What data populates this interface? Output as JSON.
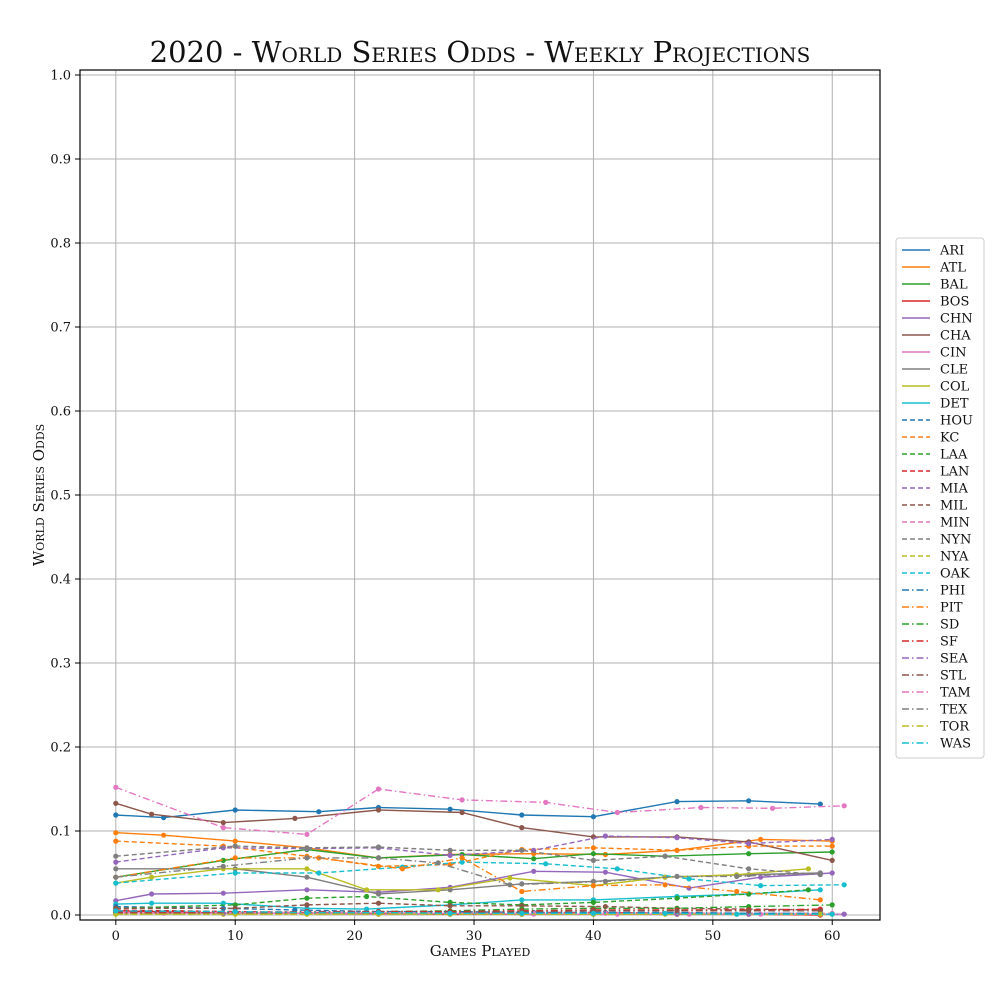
{
  "chart_data": {
    "type": "line",
    "title": "2020 - World Series Odds - Weekly Projections",
    "xlabel": "Games Played",
    "ylabel": "World Series Odds",
    "xlim": [
      -3,
      64
    ],
    "ylim": [
      0,
      1
    ],
    "xticks": [
      "0",
      "10",
      "20",
      "30",
      "40",
      "50",
      "60"
    ],
    "yticks": [
      "0.0",
      "0.1",
      "0.2",
      "0.3",
      "0.4",
      "0.5",
      "0.6",
      "0.7",
      "0.8",
      "0.9",
      "1.0"
    ],
    "grid": true,
    "legend_position": "right",
    "series": [
      {
        "name": "ARI",
        "color": "#1f77b4",
        "dash": "solid",
        "x": [
          0,
          4,
          10,
          17,
          22,
          28,
          34,
          40,
          47,
          53,
          59
        ],
        "y": [
          0.119,
          0.116,
          0.125,
          0.123,
          0.128,
          0.126,
          0.119,
          0.117,
          0.135,
          0.136,
          0.132
        ]
      },
      {
        "name": "ATL",
        "color": "#ff7f0e",
        "dash": "solid",
        "x": [
          0,
          4,
          10,
          16,
          22,
          28,
          35,
          41,
          47,
          54,
          60
        ],
        "y": [
          0.098,
          0.095,
          0.088,
          0.08,
          0.068,
          0.072,
          0.073,
          0.072,
          0.077,
          0.09,
          0.088
        ]
      },
      {
        "name": "BAL",
        "color": "#2ca02c",
        "dash": "solid",
        "x": [
          0,
          9,
          16,
          22,
          29,
          35,
          40,
          46,
          53,
          60
        ],
        "y": [
          0.045,
          0.065,
          0.078,
          0.068,
          0.072,
          0.067,
          0.073,
          0.07,
          0.073,
          0.075
        ]
      },
      {
        "name": "BOS",
        "color": "#d62728",
        "dash": "solid",
        "x": [
          0,
          10,
          16,
          22,
          28,
          34,
          40,
          47,
          53,
          59
        ],
        "y": [
          0.005,
          0.002,
          0.002,
          0.002,
          0.001,
          0.001,
          0.001,
          0.001,
          0.001,
          0.0
        ]
      },
      {
        "name": "CHN",
        "color": "#9467bd",
        "dash": "solid",
        "x": [
          0,
          3,
          9,
          16,
          22,
          28,
          35,
          41,
          48,
          54,
          60
        ],
        "y": [
          0.017,
          0.025,
          0.026,
          0.03,
          0.027,
          0.033,
          0.052,
          0.051,
          0.032,
          0.045,
          0.05
        ]
      },
      {
        "name": "CHA",
        "color": "#8c564b",
        "dash": "solid",
        "x": [
          0,
          3,
          9,
          15,
          22,
          29,
          34,
          40,
          47,
          53,
          60
        ],
        "y": [
          0.133,
          0.12,
          0.11,
          0.115,
          0.125,
          0.122,
          0.104,
          0.093,
          0.093,
          0.087,
          0.065
        ]
      },
      {
        "name": "CIN",
        "color": "#e377c2",
        "dash": "solid",
        "x": [
          0,
          4,
          10,
          16,
          22,
          28,
          35,
          42,
          48,
          54,
          61
        ],
        "y": [
          0.003,
          0.002,
          0.002,
          0.002,
          0.001,
          0.002,
          0.001,
          0.001,
          0.001,
          0.001,
          0.001
        ]
      },
      {
        "name": "CLE",
        "color": "#7f7f7f",
        "dash": "solid",
        "x": [
          0,
          10,
          16,
          22,
          28,
          34,
          40,
          46,
          53,
          59
        ],
        "y": [
          0.055,
          0.055,
          0.045,
          0.025,
          0.03,
          0.037,
          0.04,
          0.045,
          0.048,
          0.05
        ]
      },
      {
        "name": "COL",
        "color": "#bcbd22",
        "dash": "solid",
        "x": [
          0,
          3,
          9,
          16,
          21,
          27,
          33,
          40,
          46,
          52,
          58
        ],
        "y": [
          0.038,
          0.045,
          0.055,
          0.055,
          0.03,
          0.03,
          0.044,
          0.035,
          0.045,
          0.048,
          0.055
        ]
      },
      {
        "name": "DET",
        "color": "#17becf",
        "dash": "solid",
        "x": [
          0,
          3,
          9,
          16,
          21,
          28,
          34,
          40,
          47,
          53,
          59
        ],
        "y": [
          0.013,
          0.014,
          0.014,
          0.008,
          0.007,
          0.012,
          0.018,
          0.018,
          0.022,
          0.025,
          0.03
        ]
      },
      {
        "name": "HOU",
        "color": "#1f77b4",
        "dash": "dash",
        "x": [
          0,
          9,
          15,
          22,
          28,
          35,
          41,
          47,
          53,
          59
        ],
        "y": [
          0.01,
          0.008,
          0.006,
          0.004,
          0.004,
          0.003,
          0.003,
          0.002,
          0.002,
          0.002
        ]
      },
      {
        "name": "KC",
        "color": "#ff7f0e",
        "dash": "dash",
        "x": [
          0,
          9,
          16,
          22,
          28,
          34,
          40,
          47,
          53,
          60
        ],
        "y": [
          0.088,
          0.082,
          0.07,
          0.058,
          0.06,
          0.078,
          0.08,
          0.077,
          0.082,
          0.082
        ]
      },
      {
        "name": "LAA",
        "color": "#2ca02c",
        "dash": "dash",
        "x": [
          0,
          10,
          16,
          21,
          28,
          34,
          40,
          47,
          53,
          58
        ],
        "y": [
          0.008,
          0.012,
          0.02,
          0.022,
          0.015,
          0.012,
          0.015,
          0.02,
          0.025,
          0.03
        ]
      },
      {
        "name": "LAN",
        "color": "#d62728",
        "dash": "dash",
        "x": [
          0,
          10,
          16,
          22,
          28,
          34,
          40,
          47,
          53,
          59
        ],
        "y": [
          0.006,
          0.004,
          0.003,
          0.002,
          0.002,
          0.002,
          0.003,
          0.002,
          0.002,
          0.001
        ]
      },
      {
        "name": "MIA",
        "color": "#9467bd",
        "dash": "dash",
        "x": [
          0,
          9,
          16,
          22,
          28,
          35,
          41,
          47,
          53,
          60
        ],
        "y": [
          0.063,
          0.08,
          0.079,
          0.08,
          0.071,
          0.077,
          0.094,
          0.092,
          0.085,
          0.09
        ]
      },
      {
        "name": "MIL",
        "color": "#8c564b",
        "dash": "dash",
        "x": [
          0,
          10,
          16,
          22,
          28,
          34,
          41,
          47,
          53,
          59
        ],
        "y": [
          0.008,
          0.008,
          0.012,
          0.014,
          0.011,
          0.011,
          0.01,
          0.008,
          0.007,
          0.006
        ]
      },
      {
        "name": "MIN",
        "color": "#e377c2",
        "dash": "dash",
        "x": [
          0,
          10,
          16,
          22,
          28,
          35,
          41,
          47,
          53,
          60
        ],
        "y": [
          0.002,
          0.003,
          0.002,
          0.003,
          0.002,
          0.002,
          0.002,
          0.002,
          0.002,
          0.002
        ]
      },
      {
        "name": "NYN",
        "color": "#7f7f7f",
        "dash": "dash",
        "x": [
          0,
          10,
          16,
          22,
          28,
          34,
          40,
          46,
          53,
          59
        ],
        "y": [
          0.07,
          0.082,
          0.08,
          0.081,
          0.077,
          0.077,
          0.065,
          0.07,
          0.055,
          0.048
        ]
      },
      {
        "name": "NYA",
        "color": "#bcbd22",
        "dash": "dash",
        "x": [
          0,
          9,
          16,
          22,
          28,
          34,
          40,
          47,
          53,
          60
        ],
        "y": [
          0.001,
          0.001,
          0.001,
          0.001,
          0.001,
          0.001,
          0.001,
          0.001,
          0.001,
          0.001
        ]
      },
      {
        "name": "OAK",
        "color": "#17becf",
        "dash": "dash",
        "x": [
          0,
          10,
          17,
          24,
          29,
          36,
          42,
          48,
          54,
          61
        ],
        "y": [
          0.038,
          0.05,
          0.05,
          0.057,
          0.063,
          0.061,
          0.055,
          0.043,
          0.035,
          0.036
        ]
      },
      {
        "name": "PHI",
        "color": "#1f77b4",
        "dash": "dashdot",
        "x": [
          0,
          10,
          16,
          22,
          28,
          34,
          40,
          47,
          53,
          59
        ],
        "y": [
          0.004,
          0.003,
          0.003,
          0.003,
          0.003,
          0.003,
          0.003,
          0.003,
          0.002,
          0.002
        ]
      },
      {
        "name": "PIT",
        "color": "#ff7f0e",
        "dash": "dashdot",
        "x": [
          0,
          10,
          17,
          24,
          29,
          34,
          40,
          46,
          52,
          59
        ],
        "y": [
          0.045,
          0.068,
          0.068,
          0.055,
          0.068,
          0.028,
          0.035,
          0.036,
          0.028,
          0.018
        ]
      },
      {
        "name": "SD",
        "color": "#2ca02c",
        "dash": "dashdot",
        "x": [
          0,
          10,
          16,
          22,
          28,
          34,
          40,
          47,
          53,
          60
        ],
        "y": [
          0.002,
          0.003,
          0.003,
          0.004,
          0.005,
          0.007,
          0.008,
          0.008,
          0.01,
          0.012
        ]
      },
      {
        "name": "SF",
        "color": "#d62728",
        "dash": "dashdot",
        "x": [
          0,
          10,
          16,
          22,
          28,
          34,
          40,
          47,
          53,
          59
        ],
        "y": [
          0.003,
          0.003,
          0.004,
          0.004,
          0.004,
          0.005,
          0.006,
          0.006,
          0.006,
          0.007
        ]
      },
      {
        "name": "SEA",
        "color": "#9467bd",
        "dash": "dashdot",
        "x": [
          0,
          9,
          16,
          22,
          28,
          34,
          40,
          47,
          53,
          61
        ],
        "y": [
          0.002,
          0.002,
          0.002,
          0.001,
          0.001,
          0.001,
          0.001,
          0.001,
          0.001,
          0.001
        ]
      },
      {
        "name": "STL",
        "color": "#8c564b",
        "dash": "dashdot",
        "x": [
          0,
          10,
          16,
          22,
          28,
          34,
          40,
          47,
          53,
          59
        ],
        "y": [
          0.002,
          0.002,
          0.003,
          0.003,
          0.003,
          0.004,
          0.005,
          0.005,
          0.005,
          0.005
        ]
      },
      {
        "name": "TAM",
        "color": "#e377c2",
        "dash": "dashdot",
        "x": [
          0,
          9,
          16,
          22,
          29,
          36,
          42,
          49,
          55,
          61
        ],
        "y": [
          0.152,
          0.104,
          0.096,
          0.15,
          0.137,
          0.134,
          0.122,
          0.128,
          0.127,
          0.13
        ]
      },
      {
        "name": "TEX",
        "color": "#7f7f7f",
        "dash": "dashdot",
        "x": [
          0,
          9,
          16,
          22,
          27,
          33,
          41,
          47,
          52,
          59
        ],
        "y": [
          0.045,
          0.058,
          0.068,
          0.068,
          0.062,
          0.036,
          0.04,
          0.046,
          0.046,
          0.05
        ]
      },
      {
        "name": "TOR",
        "color": "#bcbd22",
        "dash": "dashdot",
        "x": [
          0,
          10,
          16,
          22,
          28,
          34,
          40,
          46,
          52,
          59
        ],
        "y": [
          0.001,
          0.001,
          0.001,
          0.001,
          0.001,
          0.001,
          0.001,
          0.001,
          0.001,
          0.001
        ]
      },
      {
        "name": "WAS",
        "color": "#17becf",
        "dash": "dashdot",
        "x": [
          0,
          10,
          16,
          22,
          28,
          34,
          40,
          46,
          52,
          60
        ],
        "y": [
          0.005,
          0.004,
          0.003,
          0.003,
          0.002,
          0.002,
          0.002,
          0.002,
          0.001,
          0.001
        ]
      }
    ]
  }
}
